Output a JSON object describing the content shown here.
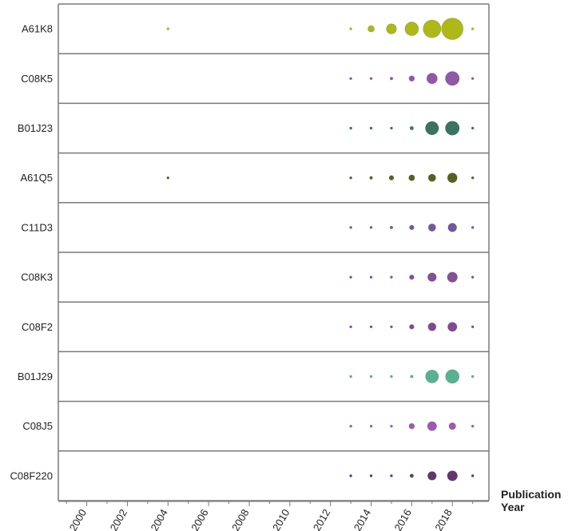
{
  "chart_data": {
    "type": "scatter",
    "subtype": "bubble-rows",
    "xlabel_line1": "Publication",
    "xlabel_line2": "Year",
    "x_ticks": [
      "2000",
      "2002",
      "2004",
      "2006",
      "2008",
      "2010",
      "2012",
      "2014",
      "2016",
      "2018"
    ],
    "xlim": [
      1998.6,
      2019.8
    ],
    "grid": false,
    "legend": "none",
    "size_scale_max": 100,
    "series": [
      {
        "name": "A61K8",
        "color": "#a9b50a",
        "points": [
          {
            "x": 2004,
            "size": 1
          },
          {
            "x": 2013,
            "size": 1
          },
          {
            "x": 2014,
            "size": 9
          },
          {
            "x": 2015,
            "size": 22
          },
          {
            "x": 2016,
            "size": 40
          },
          {
            "x": 2017,
            "size": 68
          },
          {
            "x": 2018,
            "size": 100
          },
          {
            "x": 2019,
            "size": 1
          }
        ]
      },
      {
        "name": "C08K5",
        "color": "#8b4fa3",
        "points": [
          {
            "x": 2013,
            "size": 1
          },
          {
            "x": 2014,
            "size": 1
          },
          {
            "x": 2015,
            "size": 2
          },
          {
            "x": 2016,
            "size": 7
          },
          {
            "x": 2017,
            "size": 24
          },
          {
            "x": 2018,
            "size": 42
          },
          {
            "x": 2019,
            "size": 1
          }
        ]
      },
      {
        "name": "B01J23",
        "color": "#2e6b5a",
        "points": [
          {
            "x": 2013,
            "size": 1
          },
          {
            "x": 2014,
            "size": 1
          },
          {
            "x": 2015,
            "size": 1
          },
          {
            "x": 2016,
            "size": 3
          },
          {
            "x": 2017,
            "size": 38
          },
          {
            "x": 2018,
            "size": 42
          },
          {
            "x": 2019,
            "size": 1
          }
        ]
      },
      {
        "name": "A61Q5",
        "color": "#4e5a12",
        "points": [
          {
            "x": 2004,
            "size": 1
          },
          {
            "x": 2013,
            "size": 1
          },
          {
            "x": 2014,
            "size": 2
          },
          {
            "x": 2015,
            "size": 5
          },
          {
            "x": 2016,
            "size": 8
          },
          {
            "x": 2017,
            "size": 12
          },
          {
            "x": 2018,
            "size": 20
          },
          {
            "x": 2019,
            "size": 1
          }
        ]
      },
      {
        "name": "C11D3",
        "color": "#6a4f9a",
        "points": [
          {
            "x": 2013,
            "size": 1
          },
          {
            "x": 2014,
            "size": 1
          },
          {
            "x": 2015,
            "size": 2
          },
          {
            "x": 2016,
            "size": 5
          },
          {
            "x": 2017,
            "size": 12
          },
          {
            "x": 2018,
            "size": 16
          },
          {
            "x": 2019,
            "size": 1
          }
        ]
      },
      {
        "name": "C08K3",
        "color": "#7e4790",
        "points": [
          {
            "x": 2013,
            "size": 1
          },
          {
            "x": 2014,
            "size": 1
          },
          {
            "x": 2015,
            "size": 1
          },
          {
            "x": 2016,
            "size": 5
          },
          {
            "x": 2017,
            "size": 16
          },
          {
            "x": 2018,
            "size": 22
          },
          {
            "x": 2019,
            "size": 1
          }
        ]
      },
      {
        "name": "C08F2",
        "color": "#7a3f8c",
        "points": [
          {
            "x": 2013,
            "size": 1
          },
          {
            "x": 2014,
            "size": 1
          },
          {
            "x": 2015,
            "size": 1
          },
          {
            "x": 2016,
            "size": 5
          },
          {
            "x": 2017,
            "size": 14
          },
          {
            "x": 2018,
            "size": 18
          },
          {
            "x": 2019,
            "size": 1
          }
        ]
      },
      {
        "name": "B01J29",
        "color": "#4fae8c",
        "points": [
          {
            "x": 2013,
            "size": 1
          },
          {
            "x": 2014,
            "size": 1
          },
          {
            "x": 2015,
            "size": 1
          },
          {
            "x": 2016,
            "size": 2
          },
          {
            "x": 2017,
            "size": 36
          },
          {
            "x": 2018,
            "size": 40
          },
          {
            "x": 2019,
            "size": 1
          }
        ]
      },
      {
        "name": "C08J5",
        "color": "#9b4fae",
        "points": [
          {
            "x": 2013,
            "size": 1
          },
          {
            "x": 2014,
            "size": 1
          },
          {
            "x": 2015,
            "size": 1
          },
          {
            "x": 2016,
            "size": 7
          },
          {
            "x": 2017,
            "size": 18
          },
          {
            "x": 2018,
            "size": 10
          },
          {
            "x": 2019,
            "size": 1
          }
        ]
      },
      {
        "name": "C08F220",
        "color": "#5a2c66",
        "points": [
          {
            "x": 2013,
            "size": 1
          },
          {
            "x": 2014,
            "size": 1
          },
          {
            "x": 2015,
            "size": 1
          },
          {
            "x": 2016,
            "size": 3
          },
          {
            "x": 2017,
            "size": 16
          },
          {
            "x": 2018,
            "size": 22
          },
          {
            "x": 2019,
            "size": 1
          }
        ]
      }
    ]
  }
}
